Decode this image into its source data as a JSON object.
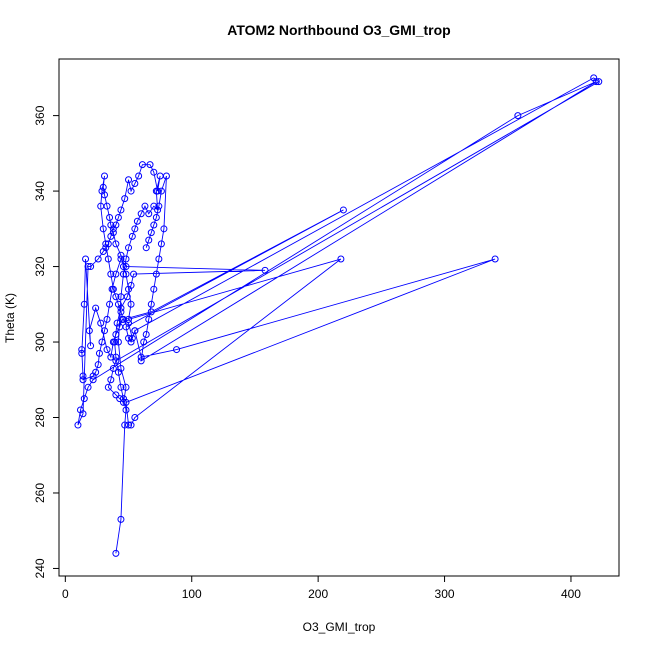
{
  "chart_data": {
    "type": "line",
    "title": "ATOM2 Northbound O3_GMI_trop",
    "xlabel": "O3_GMI_trop",
    "ylabel": "Theta (K)",
    "xlim": [
      -5,
      438
    ],
    "ylim": [
      238,
      375
    ],
    "x_ticks": [
      0,
      100,
      200,
      300,
      400
    ],
    "y_ticks": [
      240,
      260,
      280,
      300,
      320,
      340,
      360
    ],
    "grid": false,
    "line_color": "#0000ff",
    "marker": "open-circle",
    "series": [
      {
        "points": [
          [
            40,
            244
          ],
          [
            44,
            253
          ],
          [
            47,
            278
          ],
          [
            48,
            282
          ],
          [
            46,
            285
          ],
          [
            44,
            288
          ],
          [
            42,
            292
          ],
          [
            40,
            296
          ],
          [
            39,
            300
          ],
          [
            41,
            305
          ],
          [
            44,
            309
          ],
          [
            49,
            312
          ],
          [
            52,
            315
          ],
          [
            54,
            318
          ],
          [
            158,
            319
          ],
          [
            48,
            320
          ],
          [
            44,
            322
          ],
          [
            40,
            318
          ],
          [
            37,
            314
          ],
          [
            35,
            310
          ],
          [
            33,
            306
          ],
          [
            31,
            303
          ],
          [
            29,
            300
          ],
          [
            27,
            297
          ],
          [
            26,
            294
          ],
          [
            24,
            292
          ],
          [
            22,
            291
          ],
          [
            14,
            290
          ],
          [
            14,
            291
          ],
          [
            13,
            298
          ],
          [
            13,
            297
          ],
          [
            15,
            310
          ],
          [
            16,
            322
          ],
          [
            20,
            299
          ],
          [
            19,
            303
          ],
          [
            24,
            309
          ],
          [
            28,
            305
          ],
          [
            33,
            298
          ],
          [
            36,
            296
          ],
          [
            38,
            300
          ],
          [
            40,
            302
          ],
          [
            43,
            304
          ],
          [
            45,
            306
          ],
          [
            50,
            305
          ],
          [
            53,
            301
          ],
          [
            55,
            303
          ],
          [
            60,
            296
          ],
          [
            88,
            298
          ],
          [
            340,
            322
          ],
          [
            48,
            284
          ],
          [
            50,
            278
          ],
          [
            52,
            278
          ],
          [
            55,
            280
          ],
          [
            218,
            322
          ],
          [
            50,
            306
          ],
          [
            52,
            310
          ],
          [
            50,
            314
          ],
          [
            48,
            318
          ],
          [
            46,
            320
          ],
          [
            44,
            323
          ],
          [
            40,
            326
          ],
          [
            38,
            329
          ],
          [
            36,
            331
          ],
          [
            35,
            333
          ],
          [
            33,
            336
          ],
          [
            31,
            339
          ],
          [
            30,
            341
          ],
          [
            31,
            344
          ],
          [
            29,
            340
          ],
          [
            28,
            336
          ],
          [
            30,
            330
          ],
          [
            32,
            326
          ],
          [
            34,
            322
          ],
          [
            36,
            318
          ],
          [
            38,
            314
          ],
          [
            40,
            312
          ],
          [
            42,
            310
          ],
          [
            44,
            308
          ],
          [
            46,
            306
          ],
          [
            68,
            308
          ],
          [
            220,
            335
          ],
          [
            48,
            304
          ],
          [
            50,
            301
          ],
          [
            52,
            300
          ],
          [
            55,
            303
          ],
          [
            418,
            370
          ],
          [
            422,
            369
          ],
          [
            40,
            295
          ],
          [
            38,
            293
          ],
          [
            36,
            290
          ],
          [
            34,
            288
          ],
          [
            40,
            286
          ],
          [
            43,
            285
          ],
          [
            46,
            284
          ],
          [
            48,
            288
          ],
          [
            44,
            293
          ],
          [
            42,
            300
          ],
          [
            44,
            312
          ],
          [
            46,
            318
          ],
          [
            48,
            322
          ],
          [
            50,
            325
          ],
          [
            53,
            328
          ],
          [
            55,
            330
          ],
          [
            57,
            332
          ],
          [
            60,
            334
          ],
          [
            63,
            336
          ],
          [
            66,
            334
          ],
          [
            70,
            336
          ],
          [
            73,
            335
          ],
          [
            72,
            340
          ],
          [
            75,
            344
          ],
          [
            73,
            340
          ],
          [
            70,
            345
          ],
          [
            67,
            347
          ],
          [
            61,
            347
          ],
          [
            58,
            344
          ],
          [
            55,
            342
          ],
          [
            52,
            340
          ],
          [
            50,
            343
          ],
          [
            47,
            338
          ],
          [
            44,
            335
          ],
          [
            42,
            333
          ],
          [
            40,
            331
          ],
          [
            38,
            330
          ],
          [
            36,
            328
          ],
          [
            34,
            326
          ],
          [
            32,
            325
          ],
          [
            30,
            324
          ],
          [
            26,
            322
          ],
          [
            20,
            320
          ],
          [
            18,
            320
          ],
          [
            14,
            281
          ],
          [
            10,
            278
          ],
          [
            12,
            282
          ],
          [
            15,
            285
          ],
          [
            18,
            288
          ],
          [
            22,
            290
          ],
          [
            358,
            360
          ],
          [
            420,
            369
          ],
          [
            60,
            295
          ],
          [
            62,
            300
          ],
          [
            64,
            302
          ],
          [
            66,
            306
          ],
          [
            68,
            310
          ],
          [
            70,
            314
          ],
          [
            72,
            318
          ],
          [
            74,
            322
          ],
          [
            76,
            326
          ],
          [
            78,
            330
          ],
          [
            80,
            344
          ],
          [
            76,
            340
          ],
          [
            74,
            336
          ],
          [
            72,
            333
          ],
          [
            70,
            331
          ],
          [
            68,
            329
          ],
          [
            66,
            327
          ],
          [
            64,
            325
          ]
        ]
      }
    ]
  }
}
